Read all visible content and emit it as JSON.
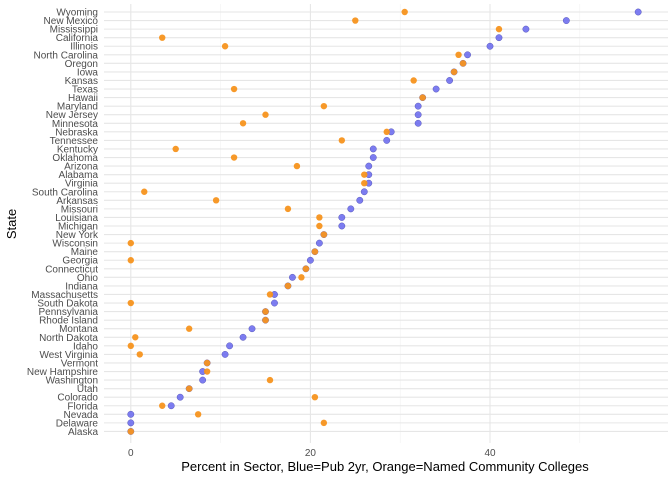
{
  "chart_data": {
    "type": "scatter",
    "xlabel": "Percent in Sector, Blue=Pub 2yr, Orange=Named Community Colleges",
    "ylabel": "State",
    "xlim": [
      -3,
      59
    ],
    "x_ticks": [
      0,
      20,
      40
    ],
    "grid": true,
    "colors": {
      "blue": "#6666ee",
      "orange": "#f7941d"
    },
    "states": [
      "Wyoming",
      "New Mexico",
      "Mississippi",
      "California",
      "Illinois",
      "North Carolina",
      "Oregon",
      "Iowa",
      "Kansas",
      "Texas",
      "Hawaii",
      "Maryland",
      "New Jersey",
      "Minnesota",
      "Nebraska",
      "Tennessee",
      "Kentucky",
      "Oklahoma",
      "Arizona",
      "Alabama",
      "Virginia",
      "South Carolina",
      "Arkansas",
      "Missouri",
      "Louisiana",
      "Michigan",
      "New York",
      "Wisconsin",
      "Maine",
      "Georgia",
      "Connecticut",
      "Ohio",
      "Indiana",
      "Massachusetts",
      "South Dakota",
      "Pennsylvania",
      "Rhode Island",
      "Montana",
      "North Dakota",
      "Idaho",
      "West Virginia",
      "Vermont",
      "New Hampshire",
      "Washington",
      "Utah",
      "Colorado",
      "Florida",
      "Nevada",
      "Delaware",
      "Alaska"
    ],
    "series": [
      {
        "color": "blue",
        "values": [
          56.5,
          48.5,
          44,
          41,
          40,
          37.5,
          37,
          36,
          35.5,
          34,
          32.5,
          32,
          32,
          32,
          29,
          28.5,
          27,
          27,
          26.5,
          26.5,
          26.5,
          26,
          25.5,
          24.5,
          23.5,
          23.5,
          21.5,
          21,
          20.5,
          20,
          19.5,
          18,
          17.5,
          16,
          16,
          15,
          15,
          13.5,
          12.5,
          11,
          10.5,
          8.5,
          8,
          8,
          6.5,
          5.5,
          4.5,
          0,
          0,
          0
        ]
      },
      {
        "color": "orange",
        "values": [
          30.5,
          25,
          41,
          3.5,
          10.5,
          36.5,
          37,
          36,
          31.5,
          11.5,
          32.5,
          21.5,
          15,
          12.5,
          28.5,
          23.5,
          5,
          11.5,
          18.5,
          26,
          26,
          1.5,
          9.5,
          17.5,
          21,
          21,
          21.5,
          0,
          20.5,
          0,
          19.5,
          19,
          17.5,
          15.5,
          0,
          15,
          15,
          6.5,
          0.5,
          0,
          1,
          8.5,
          8.5,
          15.5,
          6.5,
          20.5,
          3.5,
          7.5,
          21.5,
          0
        ]
      }
    ]
  }
}
